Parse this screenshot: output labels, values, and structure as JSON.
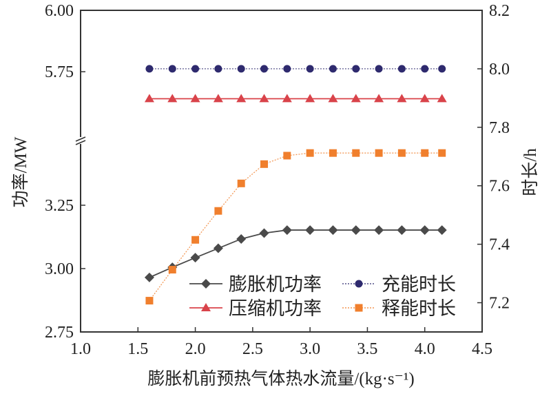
{
  "chart_data": {
    "type": "line",
    "xlabel": "膨胀机前预热气体热水流量/(kg·s⁻¹)",
    "ylabel_left": "功率/MW",
    "ylabel_right": "时长/h",
    "xlim": [
      1.0,
      4.5
    ],
    "ylim_left_lower": [
      2.75,
      3.5
    ],
    "ylim_left_upper": [
      5.47,
      6.0
    ],
    "ylim_right": [
      7.1,
      8.2
    ],
    "left_axis_break": true,
    "x_ticks": [
      "1.0",
      "1.5",
      "2.0",
      "2.5",
      "3.0",
      "3.5",
      "4.0",
      "4.5"
    ],
    "y_left_ticks": [
      "2.75",
      "3.00",
      "3.25",
      "5.75",
      "6.00"
    ],
    "y_right_ticks": [
      "7.2",
      "7.4",
      "7.6",
      "7.8",
      "8.0",
      "8.2"
    ],
    "legend_position": "bottom-right",
    "x": [
      1.6,
      1.8,
      2.0,
      2.2,
      2.4,
      2.6,
      2.8,
      3.0,
      3.2,
      3.4,
      3.6,
      3.8,
      4.0,
      4.15
    ],
    "series": [
      {
        "name": "膨胀机功率",
        "axis": "left",
        "color": "#4a4a4a",
        "marker": "diamond",
        "line": "solid",
        "values": [
          2.965,
          3.005,
          3.043,
          3.08,
          3.117,
          3.14,
          3.152,
          3.152,
          3.152,
          3.152,
          3.152,
          3.152,
          3.152,
          3.152
        ]
      },
      {
        "name": "充能时长",
        "axis": "right",
        "color": "#2e2a6e",
        "marker": "circle",
        "line": "dotted",
        "values": [
          8.0,
          8.0,
          8.0,
          8.0,
          8.0,
          8.0,
          8.0,
          8.0,
          8.0,
          8.0,
          8.0,
          8.0,
          8.0,
          8.0
        ]
      },
      {
        "name": "压缩机功率",
        "axis": "left",
        "color": "#d9434a",
        "marker": "triangle",
        "line": "solid",
        "values": [
          5.64,
          5.64,
          5.64,
          5.64,
          5.64,
          5.64,
          5.64,
          5.64,
          5.64,
          5.64,
          5.64,
          5.64,
          5.64,
          5.64
        ]
      },
      {
        "name": "释能时长",
        "axis": "right",
        "color": "#f07f2d",
        "marker": "square",
        "line": "dotted",
        "values": [
          7.207,
          7.313,
          7.415,
          7.514,
          7.608,
          7.674,
          7.703,
          7.712,
          7.712,
          7.712,
          7.712,
          7.712,
          7.712,
          7.712
        ]
      }
    ]
  }
}
